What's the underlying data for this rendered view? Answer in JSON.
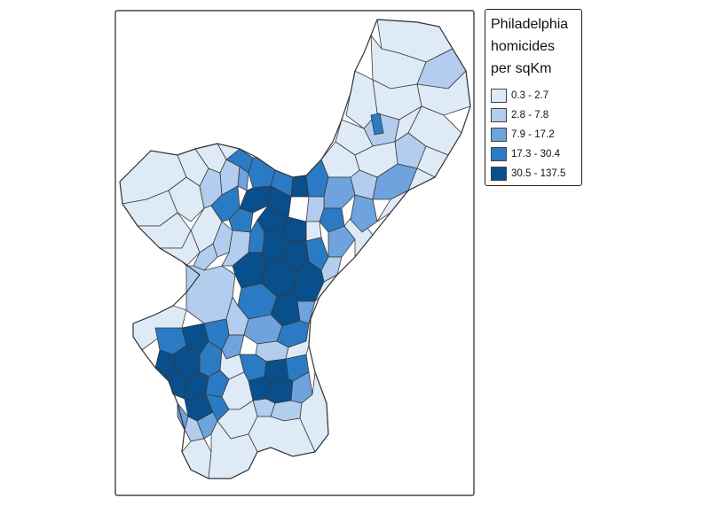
{
  "legend": {
    "title_lines": [
      "Philadelphia",
      "homicides",
      "per sqKm"
    ],
    "classes": [
      {
        "label": "0.3 - 2.7",
        "color": "#deebf7"
      },
      {
        "label": "2.8 - 7.8",
        "color": "#b3cdee"
      },
      {
        "label": "7.9 - 17.2",
        "color": "#6ea3de"
      },
      {
        "label": "17.3 - 30.4",
        "color": "#2b7bc4"
      },
      {
        "label": "30.5 - 137.5",
        "color": "#084f8c"
      }
    ]
  }
}
